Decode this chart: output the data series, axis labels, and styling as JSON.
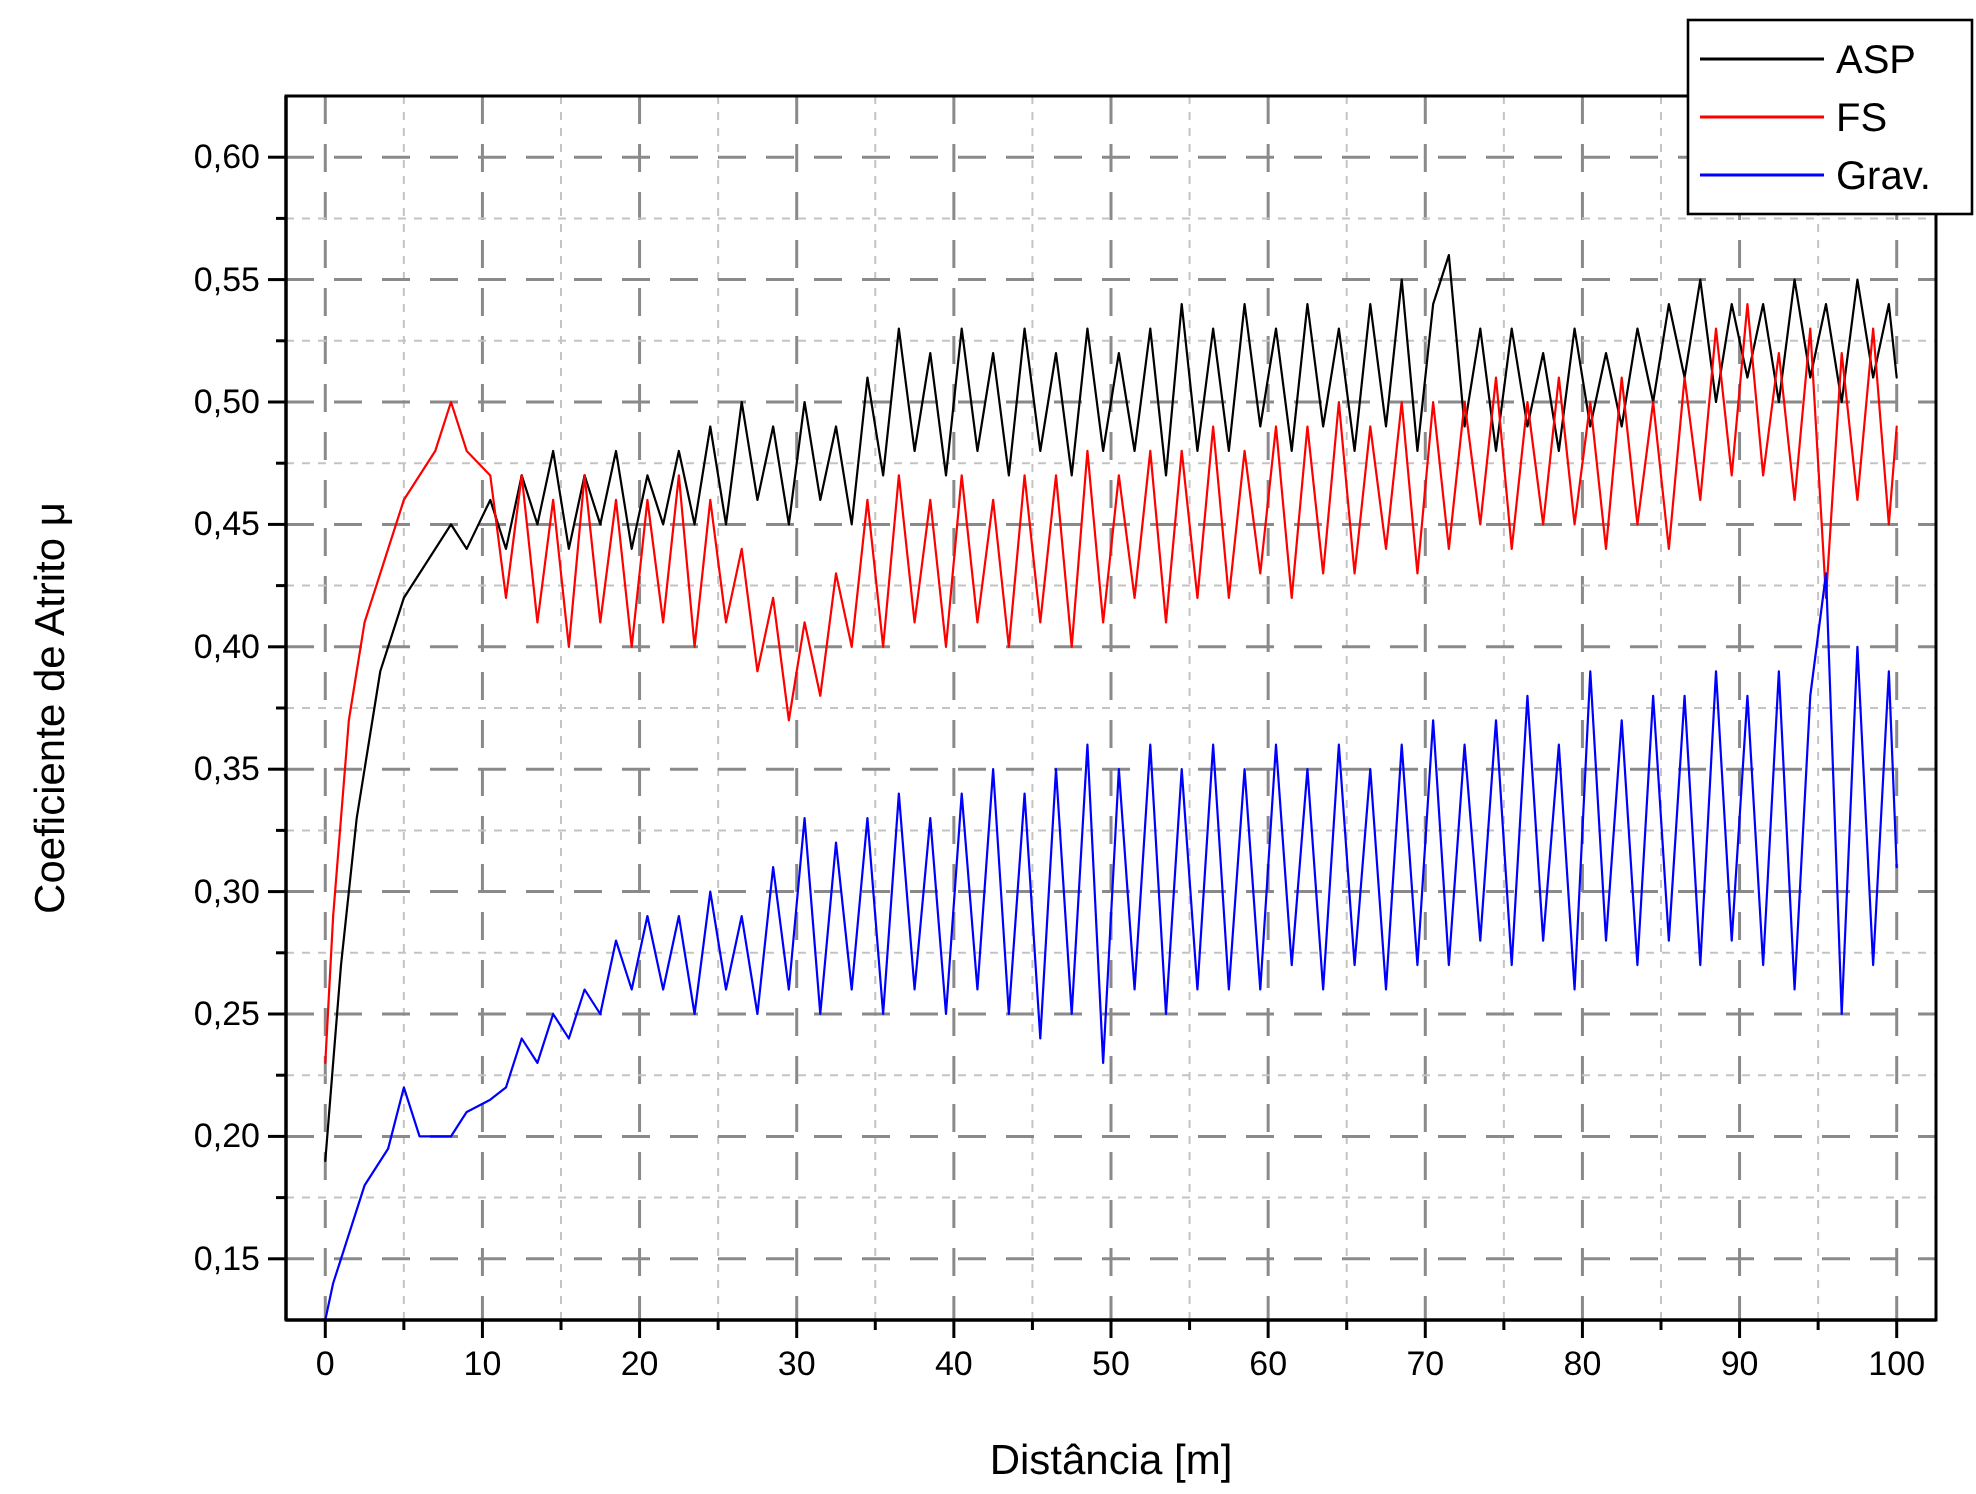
{
  "chart_data": {
    "type": "line",
    "xlabel": "Distância [m]",
    "ylabel": "Coeficiente de Atrito μ",
    "xlim": [
      -2.5,
      102.5
    ],
    "ylim": [
      0.125,
      0.625
    ],
    "xticks": [
      0,
      {
        "value": 5,
        "label": null
      },
      10,
      {
        "value": 15,
        "label": null
      },
      20,
      {
        "value": 25,
        "label": null
      },
      30,
      {
        "value": 35,
        "label": null
      },
      40,
      {
        "value": 45,
        "label": null
      },
      50,
      {
        "value": 55,
        "label": null
      },
      60,
      {
        "value": 65,
        "label": null
      },
      70,
      {
        "value": 75,
        "label": null
      },
      80,
      {
        "value": 85,
        "label": null
      },
      90,
      {
        "value": 95,
        "label": null
      },
      100
    ],
    "yticks": [
      {
        "value": 0.15,
        "label": "0,15"
      },
      {
        "value": 0.175,
        "label": null
      },
      {
        "value": 0.2,
        "label": "0,20"
      },
      {
        "value": 0.225,
        "label": null
      },
      {
        "value": 0.25,
        "label": "0,25"
      },
      {
        "value": 0.275,
        "label": null
      },
      {
        "value": 0.3,
        "label": "0,30"
      },
      {
        "value": 0.325,
        "label": null
      },
      {
        "value": 0.35,
        "label": "0,35"
      },
      {
        "value": 0.375,
        "label": null
      },
      {
        "value": 0.4,
        "label": "0,40"
      },
      {
        "value": 0.425,
        "label": null
      },
      {
        "value": 0.45,
        "label": "0,45"
      },
      {
        "value": 0.475,
        "label": null
      },
      {
        "value": 0.5,
        "label": "0,50"
      },
      {
        "value": 0.525,
        "label": null
      },
      {
        "value": 0.55,
        "label": "0,55"
      },
      {
        "value": 0.575,
        "label": null
      },
      {
        "value": 0.6,
        "label": "0,60"
      }
    ],
    "grid": true,
    "legend": "top right",
    "line_style": "solid",
    "marker": "none",
    "x": [
      0,
      0.5,
      1,
      1.5,
      2,
      2.5,
      3,
      3.5,
      4,
      5,
      6,
      7,
      8,
      9,
      10.5,
      11.5,
      12.5,
      13.5,
      14.5,
      15.5,
      16.5,
      17.5,
      18.5,
      19.5,
      20.5,
      21.5,
      22.5,
      23.5,
      24.5,
      25.5,
      26.5,
      27.5,
      28.5,
      29.5,
      30.5,
      31.5,
      32.5,
      33.5,
      34.5,
      35.5,
      36.5,
      37.5,
      38.5,
      39.5,
      40.5,
      41.5,
      42.5,
      43.5,
      44.5,
      45.5,
      46.5,
      47.5,
      48.5,
      49.5,
      50.5,
      51.5,
      52.5,
      53.5,
      54.5,
      55.5,
      56.5,
      57.5,
      58.5,
      59.5,
      60.5,
      61.5,
      62.5,
      63.5,
      64.5,
      65.5,
      66.5,
      67.5,
      68.5,
      69.5,
      70.5,
      71.5,
      72.5,
      73.5,
      74.5,
      75.5,
      76.5,
      77.5,
      78.5,
      79.5,
      80.5,
      81.5,
      82.5,
      83.5,
      84.5,
      85.5,
      86.5,
      87.5,
      88.5,
      89.5,
      90.5,
      91.5,
      92.5,
      93.5,
      94.5,
      95.5,
      96.5,
      97.5,
      98.5,
      99.5,
      100
    ],
    "series": [
      {
        "name": "ASP",
        "color": "#000000",
        "values": [
          0.19,
          0.23,
          0.27,
          0.3,
          0.33,
          0.35,
          0.37,
          0.39,
          0.4,
          0.42,
          0.43,
          0.44,
          0.45,
          0.44,
          0.46,
          0.44,
          0.47,
          0.45,
          0.48,
          0.44,
          0.47,
          0.45,
          0.48,
          0.44,
          0.47,
          0.45,
          0.48,
          0.45,
          0.49,
          0.45,
          0.5,
          0.46,
          0.49,
          0.45,
          0.5,
          0.46,
          0.49,
          0.45,
          0.51,
          0.47,
          0.53,
          0.48,
          0.52,
          0.47,
          0.53,
          0.48,
          0.52,
          0.47,
          0.53,
          0.48,
          0.52,
          0.47,
          0.53,
          0.48,
          0.52,
          0.48,
          0.53,
          0.47,
          0.54,
          0.48,
          0.53,
          0.48,
          0.54,
          0.49,
          0.53,
          0.48,
          0.54,
          0.49,
          0.53,
          0.48,
          0.54,
          0.49,
          0.55,
          0.48,
          0.54,
          0.56,
          0.49,
          0.53,
          0.48,
          0.53,
          0.49,
          0.52,
          0.48,
          0.53,
          0.49,
          0.52,
          0.49,
          0.53,
          0.5,
          0.54,
          0.51,
          0.55,
          0.5,
          0.54,
          0.51,
          0.54,
          0.5,
          0.55,
          0.51,
          0.54,
          0.5,
          0.55,
          0.51,
          0.54,
          0.51
        ]
      },
      {
        "name": "FS",
        "color": "#ff0000",
        "values": [
          0.23,
          0.29,
          0.33,
          0.37,
          0.39,
          0.41,
          0.42,
          0.43,
          0.44,
          0.46,
          0.47,
          0.48,
          0.5,
          0.48,
          0.47,
          0.42,
          0.47,
          0.41,
          0.46,
          0.4,
          0.47,
          0.41,
          0.46,
          0.4,
          0.46,
          0.41,
          0.47,
          0.4,
          0.46,
          0.41,
          0.44,
          0.39,
          0.42,
          0.37,
          0.41,
          0.38,
          0.43,
          0.4,
          0.46,
          0.4,
          0.47,
          0.41,
          0.46,
          0.4,
          0.47,
          0.41,
          0.46,
          0.4,
          0.47,
          0.41,
          0.47,
          0.4,
          0.48,
          0.41,
          0.47,
          0.42,
          0.48,
          0.41,
          0.48,
          0.42,
          0.49,
          0.42,
          0.48,
          0.43,
          0.49,
          0.42,
          0.49,
          0.43,
          0.5,
          0.43,
          0.49,
          0.44,
          0.5,
          0.43,
          0.5,
          0.44,
          0.5,
          0.45,
          0.51,
          0.44,
          0.5,
          0.45,
          0.51,
          0.45,
          0.5,
          0.44,
          0.51,
          0.45,
          0.5,
          0.44,
          0.51,
          0.46,
          0.53,
          0.47,
          0.54,
          0.47,
          0.52,
          0.46,
          0.53,
          0.42,
          0.52,
          0.46,
          0.53,
          0.45,
          0.49
        ]
      },
      {
        "name": "Grav.",
        "color": "#0000ff",
        "values": [
          0.125,
          0.14,
          0.15,
          0.16,
          0.17,
          0.18,
          0.185,
          0.19,
          0.195,
          0.22,
          0.2,
          0.2,
          0.2,
          0.21,
          0.215,
          0.22,
          0.24,
          0.23,
          0.25,
          0.24,
          0.26,
          0.25,
          0.28,
          0.26,
          0.29,
          0.26,
          0.29,
          0.25,
          0.3,
          0.26,
          0.29,
          0.25,
          0.31,
          0.26,
          0.33,
          0.25,
          0.32,
          0.26,
          0.33,
          0.25,
          0.34,
          0.26,
          0.33,
          0.25,
          0.34,
          0.26,
          0.35,
          0.25,
          0.34,
          0.24,
          0.35,
          0.25,
          0.36,
          0.23,
          0.35,
          0.26,
          0.36,
          0.25,
          0.35,
          0.26,
          0.36,
          0.26,
          0.35,
          0.26,
          0.36,
          0.27,
          0.35,
          0.26,
          0.36,
          0.27,
          0.35,
          0.26,
          0.36,
          0.27,
          0.37,
          0.27,
          0.36,
          0.28,
          0.37,
          0.27,
          0.38,
          0.28,
          0.36,
          0.26,
          0.39,
          0.28,
          0.37,
          0.27,
          0.38,
          0.28,
          0.38,
          0.27,
          0.39,
          0.28,
          0.38,
          0.27,
          0.39,
          0.26,
          0.38,
          0.43,
          0.25,
          0.4,
          0.27,
          0.39,
          0.31
        ]
      }
    ]
  }
}
